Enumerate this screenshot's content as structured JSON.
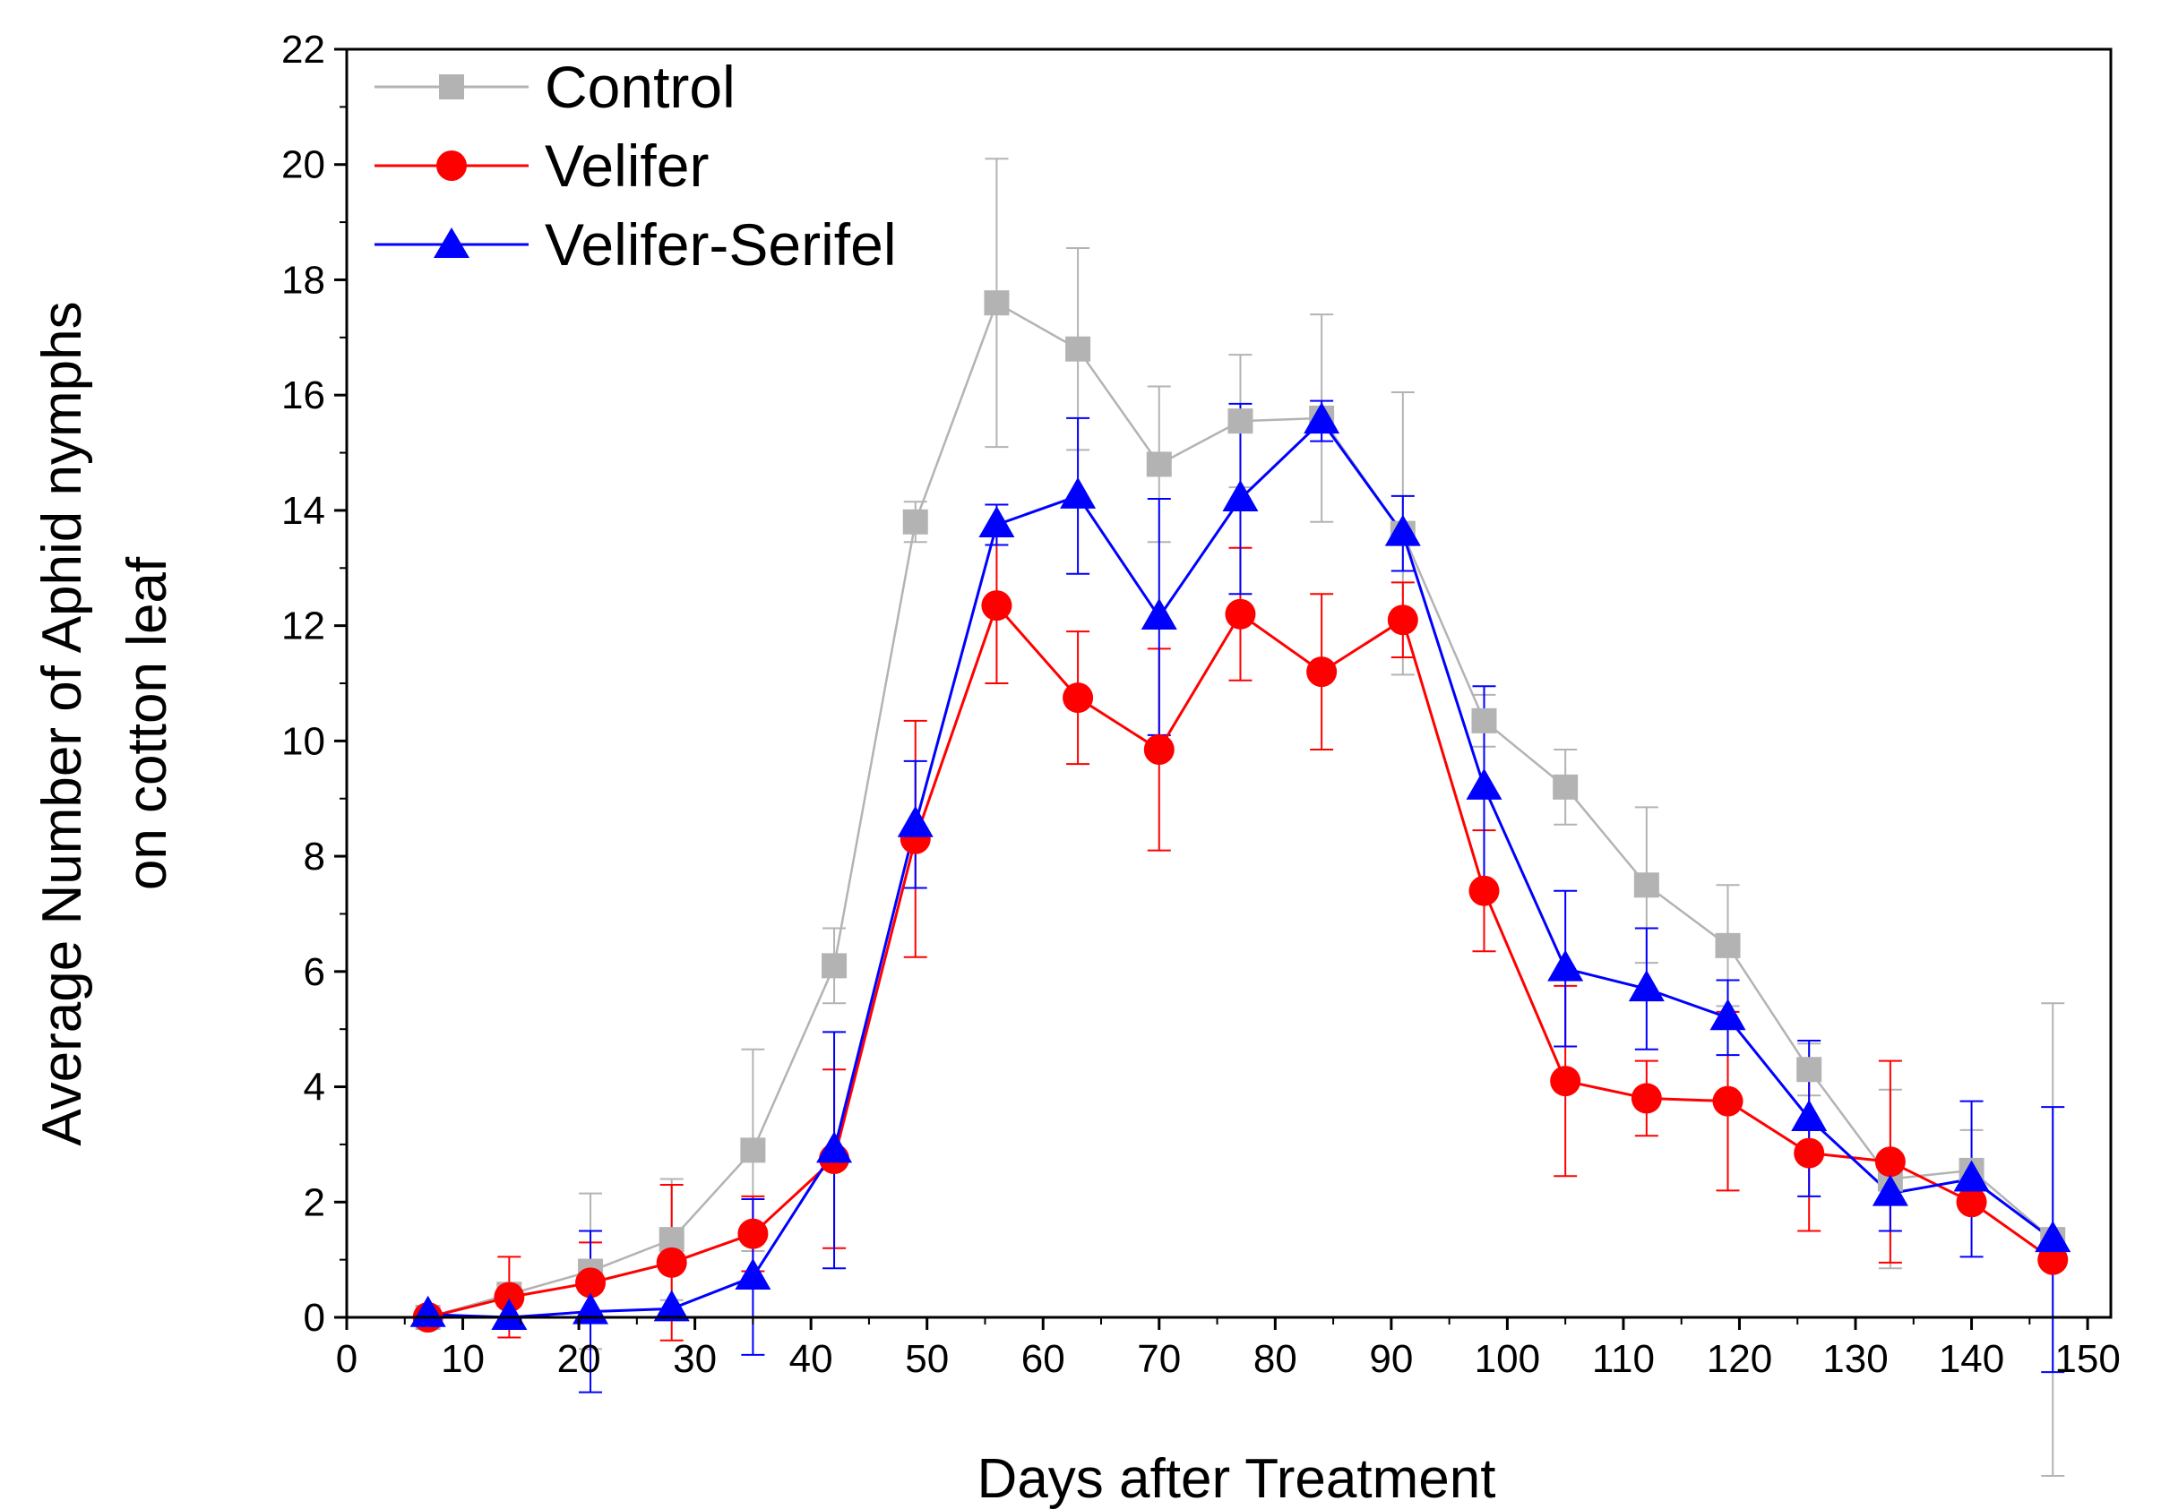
{
  "chart_data": {
    "type": "line",
    "title": "",
    "xlabel": "Days after Treatment",
    "ylabel": [
      "Average Number of Aphid nymphs",
      "on cotton leaf"
    ],
    "xlim": [
      0,
      152
    ],
    "ylim": [
      0,
      22
    ],
    "xticks": [
      0,
      10,
      20,
      30,
      40,
      50,
      60,
      70,
      80,
      90,
      100,
      110,
      120,
      130,
      140,
      150
    ],
    "yticks": [
      0,
      2,
      4,
      6,
      8,
      10,
      12,
      14,
      16,
      18,
      20,
      22
    ],
    "x": [
      7,
      14,
      21,
      28,
      35,
      42,
      49,
      56,
      63,
      70,
      77,
      84,
      91,
      98,
      105,
      112,
      119,
      126,
      133,
      140,
      147
    ],
    "grid": false,
    "legend_position": "top-left",
    "series": [
      {
        "name": "Control",
        "color": "#b3b3b3",
        "marker": "square",
        "values": [
          0.0,
          0.4,
          0.8,
          1.35,
          2.9,
          6.1,
          13.8,
          17.6,
          16.8,
          14.8,
          15.55,
          15.6,
          13.6,
          10.35,
          9.2,
          7.5,
          6.45,
          4.3,
          2.4,
          2.55,
          1.35
        ],
        "errors": [
          0.0,
          0.0,
          1.35,
          1.05,
          1.75,
          0.65,
          0.35,
          2.5,
          1.75,
          1.35,
          1.15,
          1.8,
          2.45,
          0.45,
          0.65,
          1.35,
          1.05,
          0.45,
          1.55,
          0.7,
          4.1
        ]
      },
      {
        "name": "Velifer",
        "color": "#ff0000",
        "marker": "circle",
        "values": [
          0.0,
          0.35,
          0.6,
          0.95,
          1.45,
          2.75,
          8.3,
          12.35,
          10.75,
          9.85,
          12.2,
          11.2,
          12.1,
          7.4,
          4.1,
          3.8,
          3.75,
          2.85,
          2.7,
          2.0,
          1.0
        ],
        "errors": [
          0.0,
          0.7,
          0.7,
          1.35,
          0.65,
          1.55,
          2.05,
          1.35,
          1.15,
          1.75,
          1.15,
          1.35,
          0.65,
          1.05,
          1.65,
          0.65,
          1.55,
          1.35,
          1.75,
          0.0,
          0.0
        ]
      },
      {
        "name": "Velifer-Serifel",
        "color": "#0000ff",
        "marker": "triangle",
        "values": [
          0.05,
          0.0,
          0.1,
          0.15,
          0.7,
          2.9,
          8.55,
          13.75,
          14.25,
          12.15,
          14.2,
          15.55,
          13.6,
          9.2,
          6.05,
          5.7,
          5.2,
          3.45,
          2.15,
          2.4,
          1.35
        ],
        "errors": [
          0.0,
          0.0,
          1.4,
          0.0,
          1.35,
          2.05,
          1.1,
          0.35,
          1.35,
          2.05,
          1.65,
          0.35,
          0.65,
          1.75,
          1.35,
          1.05,
          0.65,
          1.35,
          0.65,
          1.35,
          2.3
        ]
      }
    ]
  }
}
